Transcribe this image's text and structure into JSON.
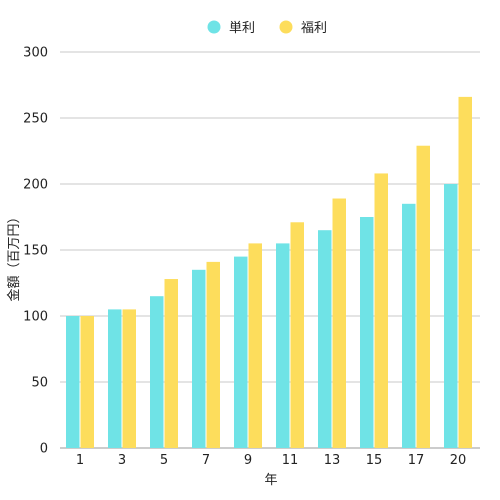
{
  "chart_data": {
    "type": "bar",
    "title": "",
    "xlabel": "年",
    "ylabel": "金額（百万円）",
    "ylim": [
      0,
      300
    ],
    "yticks": [
      0,
      50,
      100,
      150,
      200,
      250,
      300
    ],
    "grid": true,
    "legend_position": "top-center",
    "categories": [
      "1",
      "3",
      "5",
      "7",
      "9",
      "11",
      "13",
      "15",
      "17",
      "20"
    ],
    "series": [
      {
        "name": "単利",
        "color": "#6fe3e6",
        "values": [
          100,
          105,
          115,
          135,
          145,
          155,
          165,
          175,
          185,
          200
        ]
      },
      {
        "name": "福利",
        "color": "#fddd5c",
        "values": [
          100,
          105,
          128,
          141,
          155,
          171,
          189,
          208,
          229,
          266
        ]
      }
    ]
  }
}
